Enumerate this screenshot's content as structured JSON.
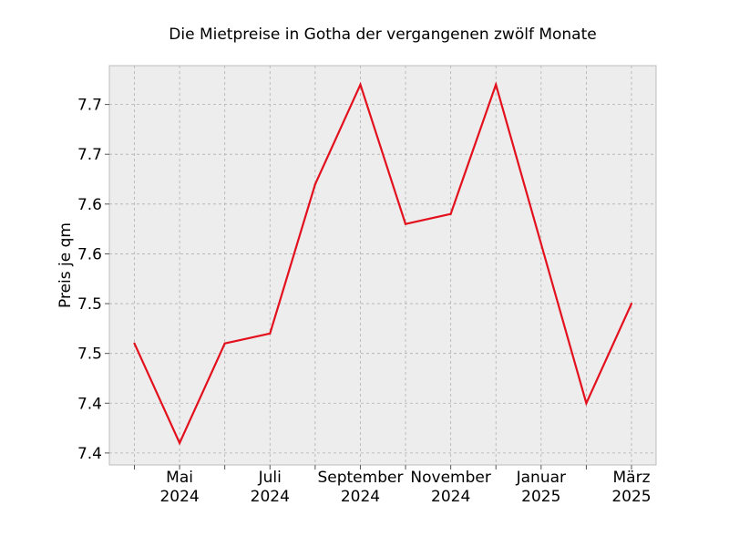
{
  "chart_data": {
    "type": "line",
    "title": "Die Mietpreise in Gotha der vergangenen zwölf Monate",
    "xlabel": "",
    "ylabel": "Preis je qm",
    "grid": true,
    "x": [
      "2024-04",
      "2024-05",
      "2024-06",
      "2024-07",
      "2024-08",
      "2024-09",
      "2024-10",
      "2024-11",
      "2024-12",
      "2025-01",
      "2025-02",
      "2025-03"
    ],
    "x_tick_labels": [
      {
        "line1": "Mai",
        "line2": "2024"
      },
      {
        "line1": "Juli",
        "line2": "2024"
      },
      {
        "line1": "September",
        "line2": "2024"
      },
      {
        "line1": "November",
        "line2": "2024"
      },
      {
        "line1": "Januar",
        "line2": "2025"
      },
      {
        "line1": "März",
        "line2": "2025"
      }
    ],
    "y_tick_labels": [
      "7.4",
      "7.4",
      "7.5",
      "7.5",
      "7.6",
      "7.6",
      "7.7",
      "7.7"
    ],
    "y_ticks": [
      7.4,
      7.45,
      7.5,
      7.55,
      7.6,
      7.65,
      7.7,
      7.75
    ],
    "ylim": [
      7.388,
      7.789
    ],
    "series": [
      {
        "color": "#e3101d",
        "values": [
          7.51,
          7.41,
          7.51,
          7.52,
          7.67,
          7.77,
          7.63,
          7.64,
          7.77,
          7.61,
          7.45,
          7.55
        ]
      }
    ]
  }
}
